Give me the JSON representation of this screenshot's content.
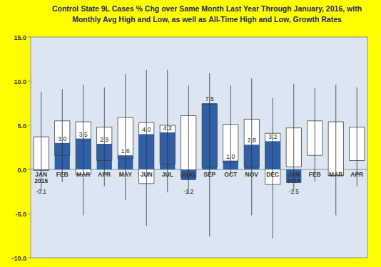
{
  "chart_data": {
    "type": "bar",
    "title": [
      "Control State 9L Cases % Chg over Same Month Last Year Through January, 2016, with",
      "Monthly Avg High and Low, as well as All-Time High and Low,  Growth Rates"
    ],
    "categories": [
      "JAN 2015",
      "FEB",
      "MAR",
      "APR",
      "MAY",
      "JUN",
      "JUL",
      "AUG",
      "SEP",
      "OCT",
      "NOV",
      "DEC",
      "JAN 2016",
      "FEB",
      "MAR",
      "APR"
    ],
    "values": [
      -0.1,
      3.0,
      3.5,
      2.9,
      1.6,
      4.0,
      4.2,
      -1.2,
      7.5,
      1.0,
      2.8,
      3.2,
      -1.5,
      null,
      null,
      null
    ],
    "value_labels": [
      "-0.1",
      "3.0",
      "3.5",
      "2.9",
      "1.6",
      "4.0",
      "4.2",
      "-1.2",
      "7.5",
      "1.0",
      "2.8",
      "3.2",
      "-1.5",
      null,
      null,
      null
    ],
    "avg_low": [
      -0.1,
      1.6,
      -0.6,
      1.0,
      1.2,
      -1.6,
      0.6,
      -0.9,
      0.3,
      0.8,
      0.3,
      -1.7,
      0.3,
      1.6,
      -0.7,
      1.0
    ],
    "avg_high": [
      3.7,
      5.5,
      5.4,
      4.8,
      5.9,
      5.3,
      5.0,
      6.1,
      7.4,
      5.1,
      5.7,
      4.1,
      4.7,
      5.5,
      5.4,
      4.8
    ],
    "all_time_low": [
      -2.5,
      -1.4,
      -5.2,
      -1.9,
      -3.5,
      -6.4,
      -2.6,
      -2.7,
      -7.6,
      -0.6,
      -5.2,
      -7.8,
      -2.5,
      -1.4,
      -5.2,
      -1.9
    ],
    "all_time_high": [
      8.8,
      9.1,
      9.6,
      9.3,
      10.8,
      11.3,
      11.3,
      9.5,
      10.9,
      9.5,
      10.3,
      8.1,
      9.7,
      9.2,
      9.6,
      9.3
    ],
    "color": "#2F5FA7",
    "ylim": [
      -10,
      15
    ],
    "yticks": [
      {
        "value": -10,
        "label": "-10.0"
      },
      {
        "value": -5,
        "label": "-5.0"
      },
      {
        "value": 0,
        "label": "0.0"
      },
      {
        "value": 5,
        "label": "5.0"
      },
      {
        "value": 10,
        "label": "10.0"
      },
      {
        "value": 15,
        "label": "15.0"
      }
    ],
    "grid": false,
    "data_labels": true
  }
}
